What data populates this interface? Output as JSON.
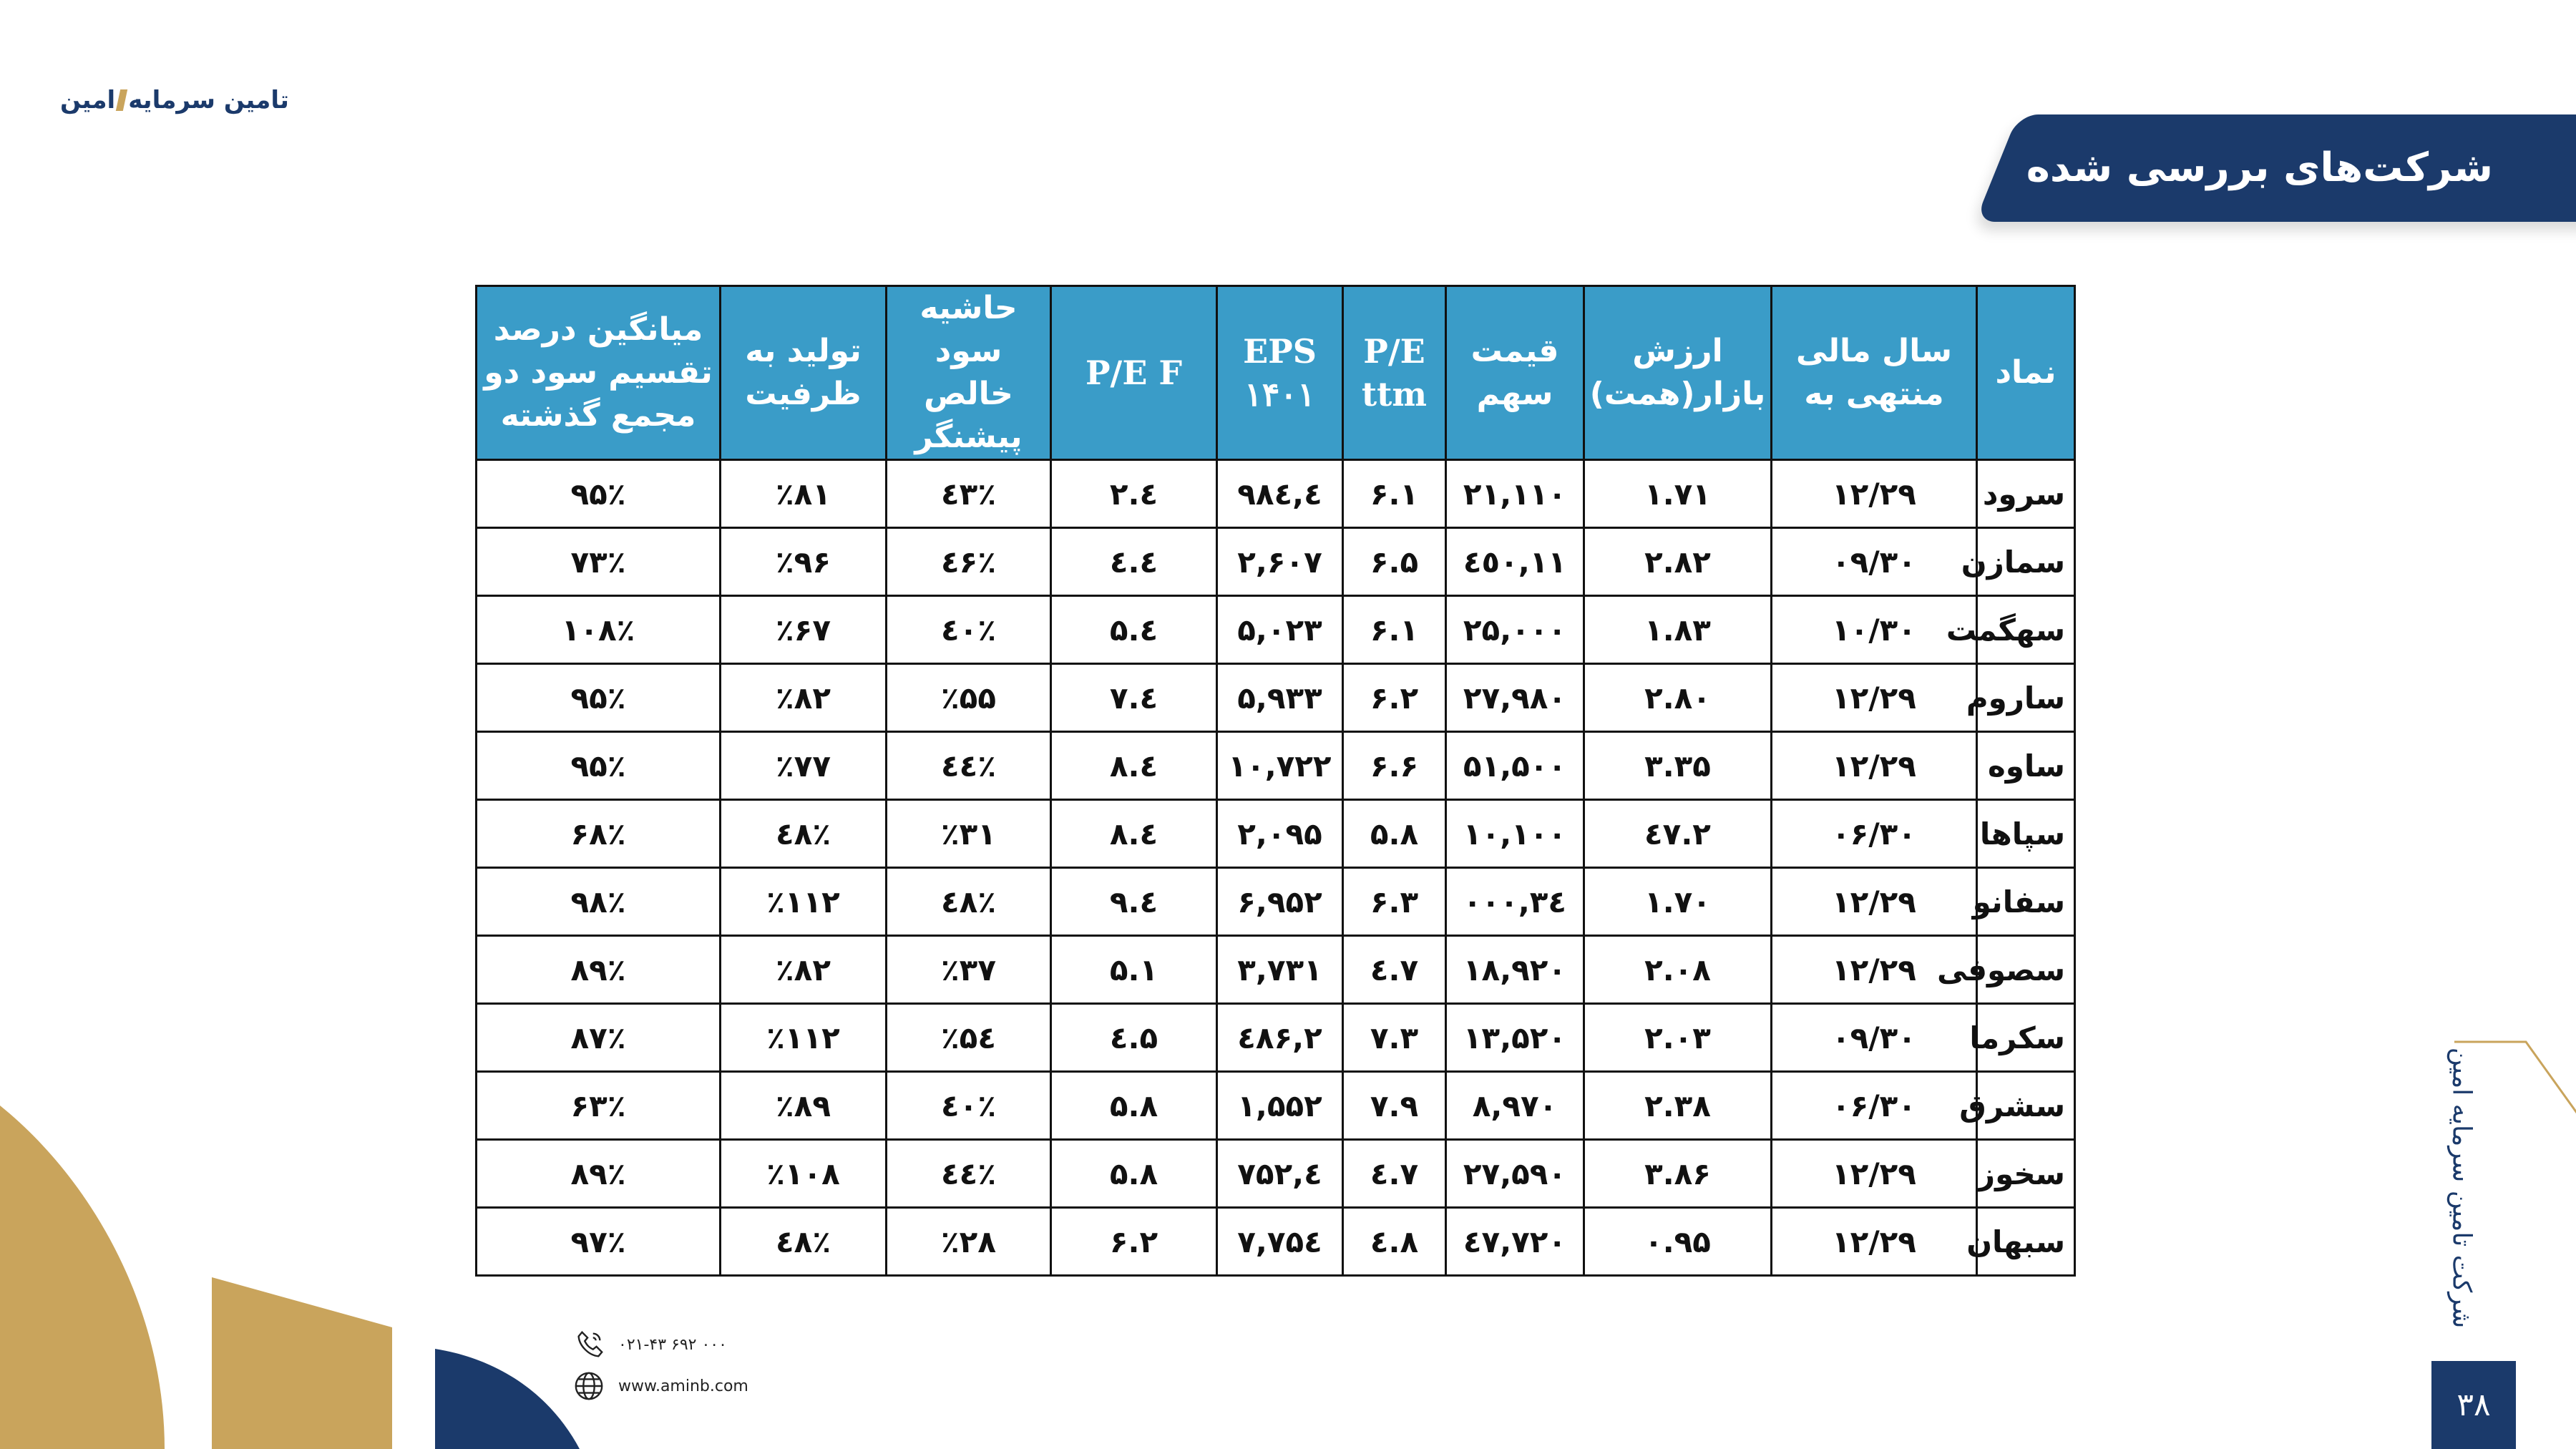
{
  "brand": {
    "part1": "تامین سرمایه",
    "part2": "امین"
  },
  "title": "شرکت‌های بررسی شده",
  "table": {
    "headers": [
      {
        "text": "نماد",
        "latin": false
      },
      {
        "text": "سال مالی منتهی به",
        "latin": false
      },
      {
        "text": "ارزش بازار(همت)",
        "latin": false
      },
      {
        "text": "قیمت سهم",
        "latin": false
      },
      {
        "text": "P/E ttm",
        "latin": true
      },
      {
        "text": "EPS ۱۴۰۱",
        "latin": true
      },
      {
        "text": "P/E F",
        "latin": true
      },
      {
        "text": "حاشیه سود خالص پیشنگر",
        "latin": false
      },
      {
        "text": "تولید به ظرفیت",
        "latin": false
      },
      {
        "text": "میانگین  درصد تقسیم سود دو مجمع گذشته",
        "latin": false
      }
    ],
    "rows": [
      [
        "سرود",
        "۱۲/۲۹",
        "۱.۷۱",
        "۲۱,۱۱۰",
        "۶.۱",
        "٤,۹۸٤",
        "٤.۲",
        "٪٤۳",
        "٪۸۱",
        "۹۵٪"
      ],
      [
        "سمازن",
        "۰۹/۳۰",
        "۲.۸۲",
        "۱۱,٤٥۰",
        "۶.۵",
        "۲,۶۰۷",
        "٤.٤",
        "٪٤۶",
        "٪۹۶",
        "۷۳٪"
      ],
      [
        "سهگمت",
        "۱۰/۳۰",
        "۱.۸۳",
        "۲۵,۰۰۰",
        "۶.۱",
        "۵,۰۲۳",
        "٤.۵",
        "٪٤۰",
        "٪۶۷",
        "۱۰۸٪"
      ],
      [
        "ساروم",
        "۱۲/۲۹",
        "۲.۸۰",
        "۲۷,۹۸۰",
        "۶.۲",
        "۵,۹۳۳",
        "٤.۷",
        "٪۵۵",
        "٪۸۲",
        "۹۵٪"
      ],
      [
        "ساوه",
        "۱۲/۲۹",
        "۳.۳۵",
        "۵۱,۵۰۰",
        "۶.۶",
        "۱۰,۷۲۲",
        "٤.۸",
        "٪٤٤",
        "٪۷۷",
        "۹۵٪"
      ],
      [
        "سپاها",
        "۰۶/۳۰",
        "۲.٤۷",
        "۱۰,۱۰۰",
        "۵.۸",
        "۲,۰۹۵",
        "٤.۸",
        "٪۳۱",
        "٪٤۸",
        "۶۸٪"
      ],
      [
        "سفانو",
        "۱۲/۲۹",
        "۱.۷۰",
        "۳٤,۰۰۰",
        "۶.۳",
        "۶,۹۵۲",
        "٤.۹",
        "٪٤۸",
        "٪۱۱۲",
        "۹۸٪"
      ],
      [
        "سصوفی",
        "۱۲/۲۹",
        "۲.۰۸",
        "۱۸,۹۲۰",
        "۷.٤",
        "۳,۷۳۱",
        "۵.۱",
        "٪۳۷",
        "٪۸۲",
        "۸۹٪"
      ],
      [
        "سکرما",
        "۰۹/۳۰",
        "۲.۰۳",
        "۱۳,۵۲۰",
        "۷.۳",
        "۲,٤۸۶",
        "۵.٤",
        "٪۵٤",
        "٪۱۱۲",
        "۸۷٪"
      ],
      [
        "سشرق",
        "۰۶/۳۰",
        "۲.۳۸",
        "۸,۹۷۰",
        "۷.۹",
        "۱,۵۵۲",
        "۵.۸",
        "٪٤۰",
        "٪۸۹",
        "۶۳٪"
      ],
      [
        "سخوز",
        "۱۲/۲۹",
        "۳.۸۶",
        "۲۷,۵۹۰",
        "۷.٤",
        "٤,۷۵۲",
        "۵.۸",
        "٪٤٤",
        "٪۱۰۸",
        "۸۹٪"
      ],
      [
        "سبهان",
        "۱۲/۲۹",
        "۰.۹۵",
        "٤۷,۷۲۰",
        "۸.٤",
        "۷,۷۵٤",
        "۶.۲",
        "٪۲۸",
        "٪٤۸",
        "۹۷٪"
      ]
    ]
  },
  "contact": {
    "phone": "۰۲۱-۴۳ ۶۹۲ ۰۰۰",
    "website": "www.aminb.com"
  },
  "footer": {
    "company_vertical": "شرکت تامین سرمایه امین",
    "page_number": "۳۸"
  },
  "colors": {
    "navy": "#1b3a6b",
    "table_header": "#3a9cc8",
    "gold": "#c9a45c"
  },
  "icons": [
    "phone-icon",
    "globe-icon"
  ]
}
